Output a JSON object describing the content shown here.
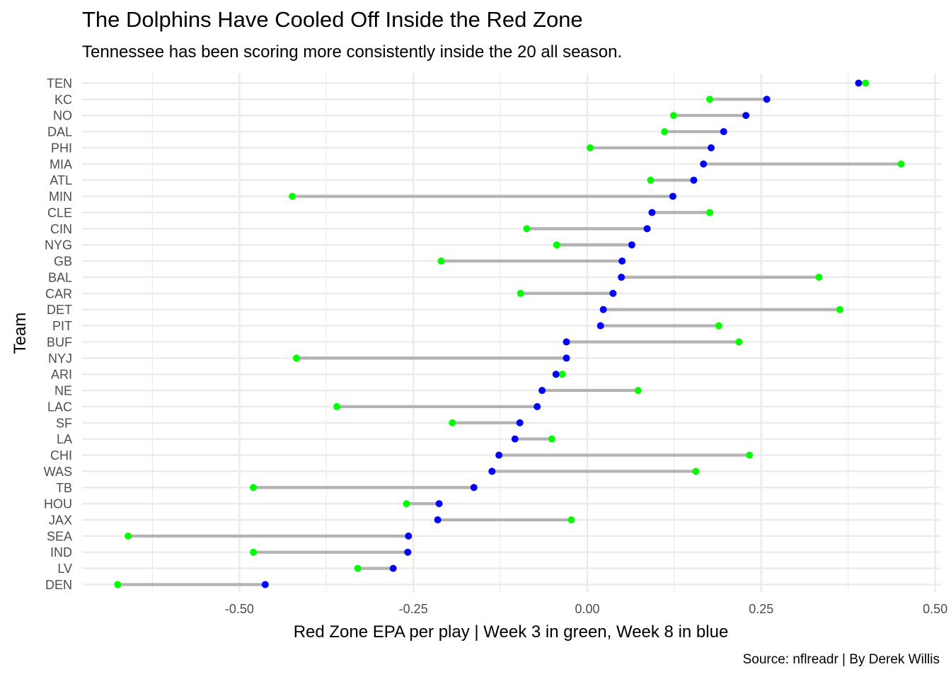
{
  "chart_data": {
    "type": "dumbbell",
    "title": "The Dolphins Have Cooled Off Inside the Red Zone",
    "subtitle": "Tennessee has been scoring more consistently inside the 20 all season.",
    "caption": "Source: nflreadr | By Derek Willis",
    "xlabel": "Red Zone EPA per play | Week 3 in green, Week 8 in blue",
    "ylabel": "Team",
    "xlim": [
      -0.72,
      0.5
    ],
    "x_ticks": [
      -0.5,
      -0.25,
      0.0,
      0.25,
      0.5
    ],
    "x_tick_labels": [
      "-0.50",
      "-0.25",
      "0.00",
      "0.25",
      "0.50"
    ],
    "grid": true,
    "colors": {
      "week3": "#00ff00",
      "week8": "#0000ff",
      "segment": "#b3b3b3",
      "grid": "#ebebeb"
    },
    "teams": [
      "TEN",
      "KC",
      "NO",
      "DAL",
      "PHI",
      "MIA",
      "ATL",
      "MIN",
      "CLE",
      "CIN",
      "NYG",
      "GB",
      "BAL",
      "CAR",
      "DET",
      "PIT",
      "BUF",
      "NYJ",
      "ARI",
      "NE",
      "LAC",
      "SF",
      "LA",
      "CHI",
      "WAS",
      "TB",
      "HOU",
      "JAX",
      "SEA",
      "IND",
      "LV",
      "DEN"
    ],
    "week3": [
      0.4,
      0.176,
      0.124,
      0.111,
      0.004,
      0.451,
      0.091,
      -0.424,
      0.176,
      -0.087,
      -0.044,
      -0.21,
      0.333,
      -0.096,
      0.363,
      0.189,
      0.218,
      -0.418,
      -0.036,
      0.073,
      -0.36,
      -0.194,
      -0.051,
      0.233,
      0.156,
      -0.48,
      -0.26,
      -0.023,
      -0.66,
      -0.48,
      -0.33,
      -0.675
    ],
    "week8": [
      0.39,
      0.258,
      0.228,
      0.196,
      0.178,
      0.167,
      0.153,
      0.123,
      0.093,
      0.086,
      0.064,
      0.05,
      0.049,
      0.037,
      0.023,
      0.019,
      -0.03,
      -0.03,
      -0.045,
      -0.065,
      -0.072,
      -0.097,
      -0.104,
      -0.127,
      -0.137,
      -0.163,
      -0.213,
      -0.215,
      -0.257,
      -0.258,
      -0.279,
      -0.463
    ]
  }
}
